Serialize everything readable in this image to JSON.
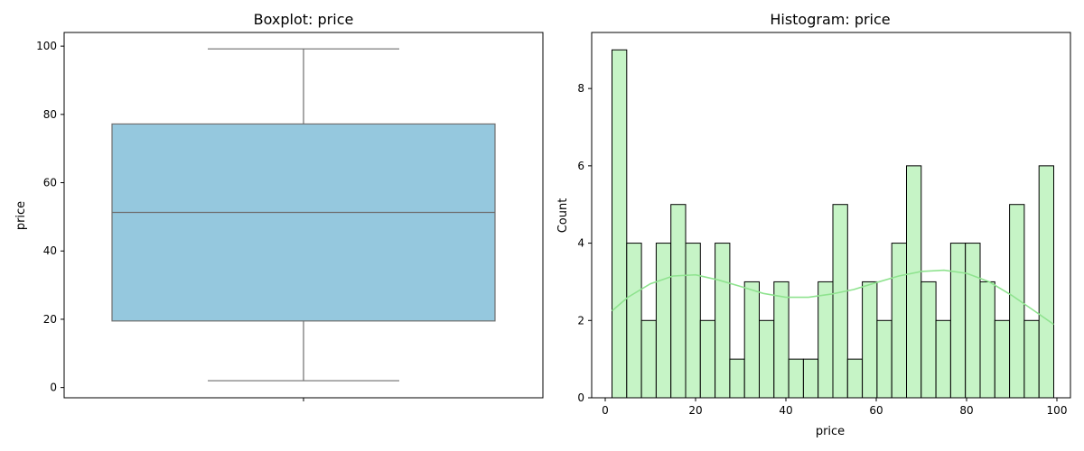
{
  "chart_data": [
    {
      "type": "boxplot",
      "title": "Boxplot: price",
      "xlabel": "",
      "ylabel": "price",
      "ylim": [
        -3,
        104
      ],
      "yticks": [
        0,
        20,
        40,
        60,
        80,
        100
      ],
      "box": {
        "min": 2,
        "q1": 19.5,
        "median": 51.3,
        "q3": 77.2,
        "max": 99.2
      },
      "box_color": "#95c8de",
      "line_color": "#6e6e6e"
    },
    {
      "type": "bar",
      "subtype": "histogram",
      "title": "Histogram: price",
      "xlabel": "price",
      "ylabel": "Count",
      "xlim": [
        -3.0,
        103.0
      ],
      "ylim": [
        0,
        9.45
      ],
      "xticks": [
        0,
        20,
        40,
        60,
        80,
        100
      ],
      "yticks": [
        0,
        2,
        4,
        6,
        8
      ],
      "bin_start": 1.5,
      "bin_width": 3.26,
      "counts": [
        9,
        4,
        2,
        4,
        5,
        4,
        2,
        4,
        1,
        3,
        2,
        3,
        1,
        1,
        3,
        5,
        1,
        3,
        2,
        4,
        6,
        3,
        2,
        4,
        4,
        3,
        2,
        5,
        2,
        6
      ],
      "kde": {
        "x": [
          1.5,
          5,
          10,
          15,
          20,
          25,
          30,
          35,
          40,
          45,
          50,
          55,
          60,
          65,
          70,
          75,
          80,
          85,
          90,
          95,
          99.3
        ],
        "y": [
          2.25,
          2.6,
          2.95,
          3.15,
          3.18,
          3.05,
          2.88,
          2.7,
          2.6,
          2.6,
          2.68,
          2.8,
          2.98,
          3.15,
          3.27,
          3.3,
          3.22,
          3.0,
          2.65,
          2.25,
          1.9
        ]
      },
      "bar_color": "#c6f4c6",
      "edge_color": "#000000",
      "kde_color": "#8fe38f"
    }
  ]
}
